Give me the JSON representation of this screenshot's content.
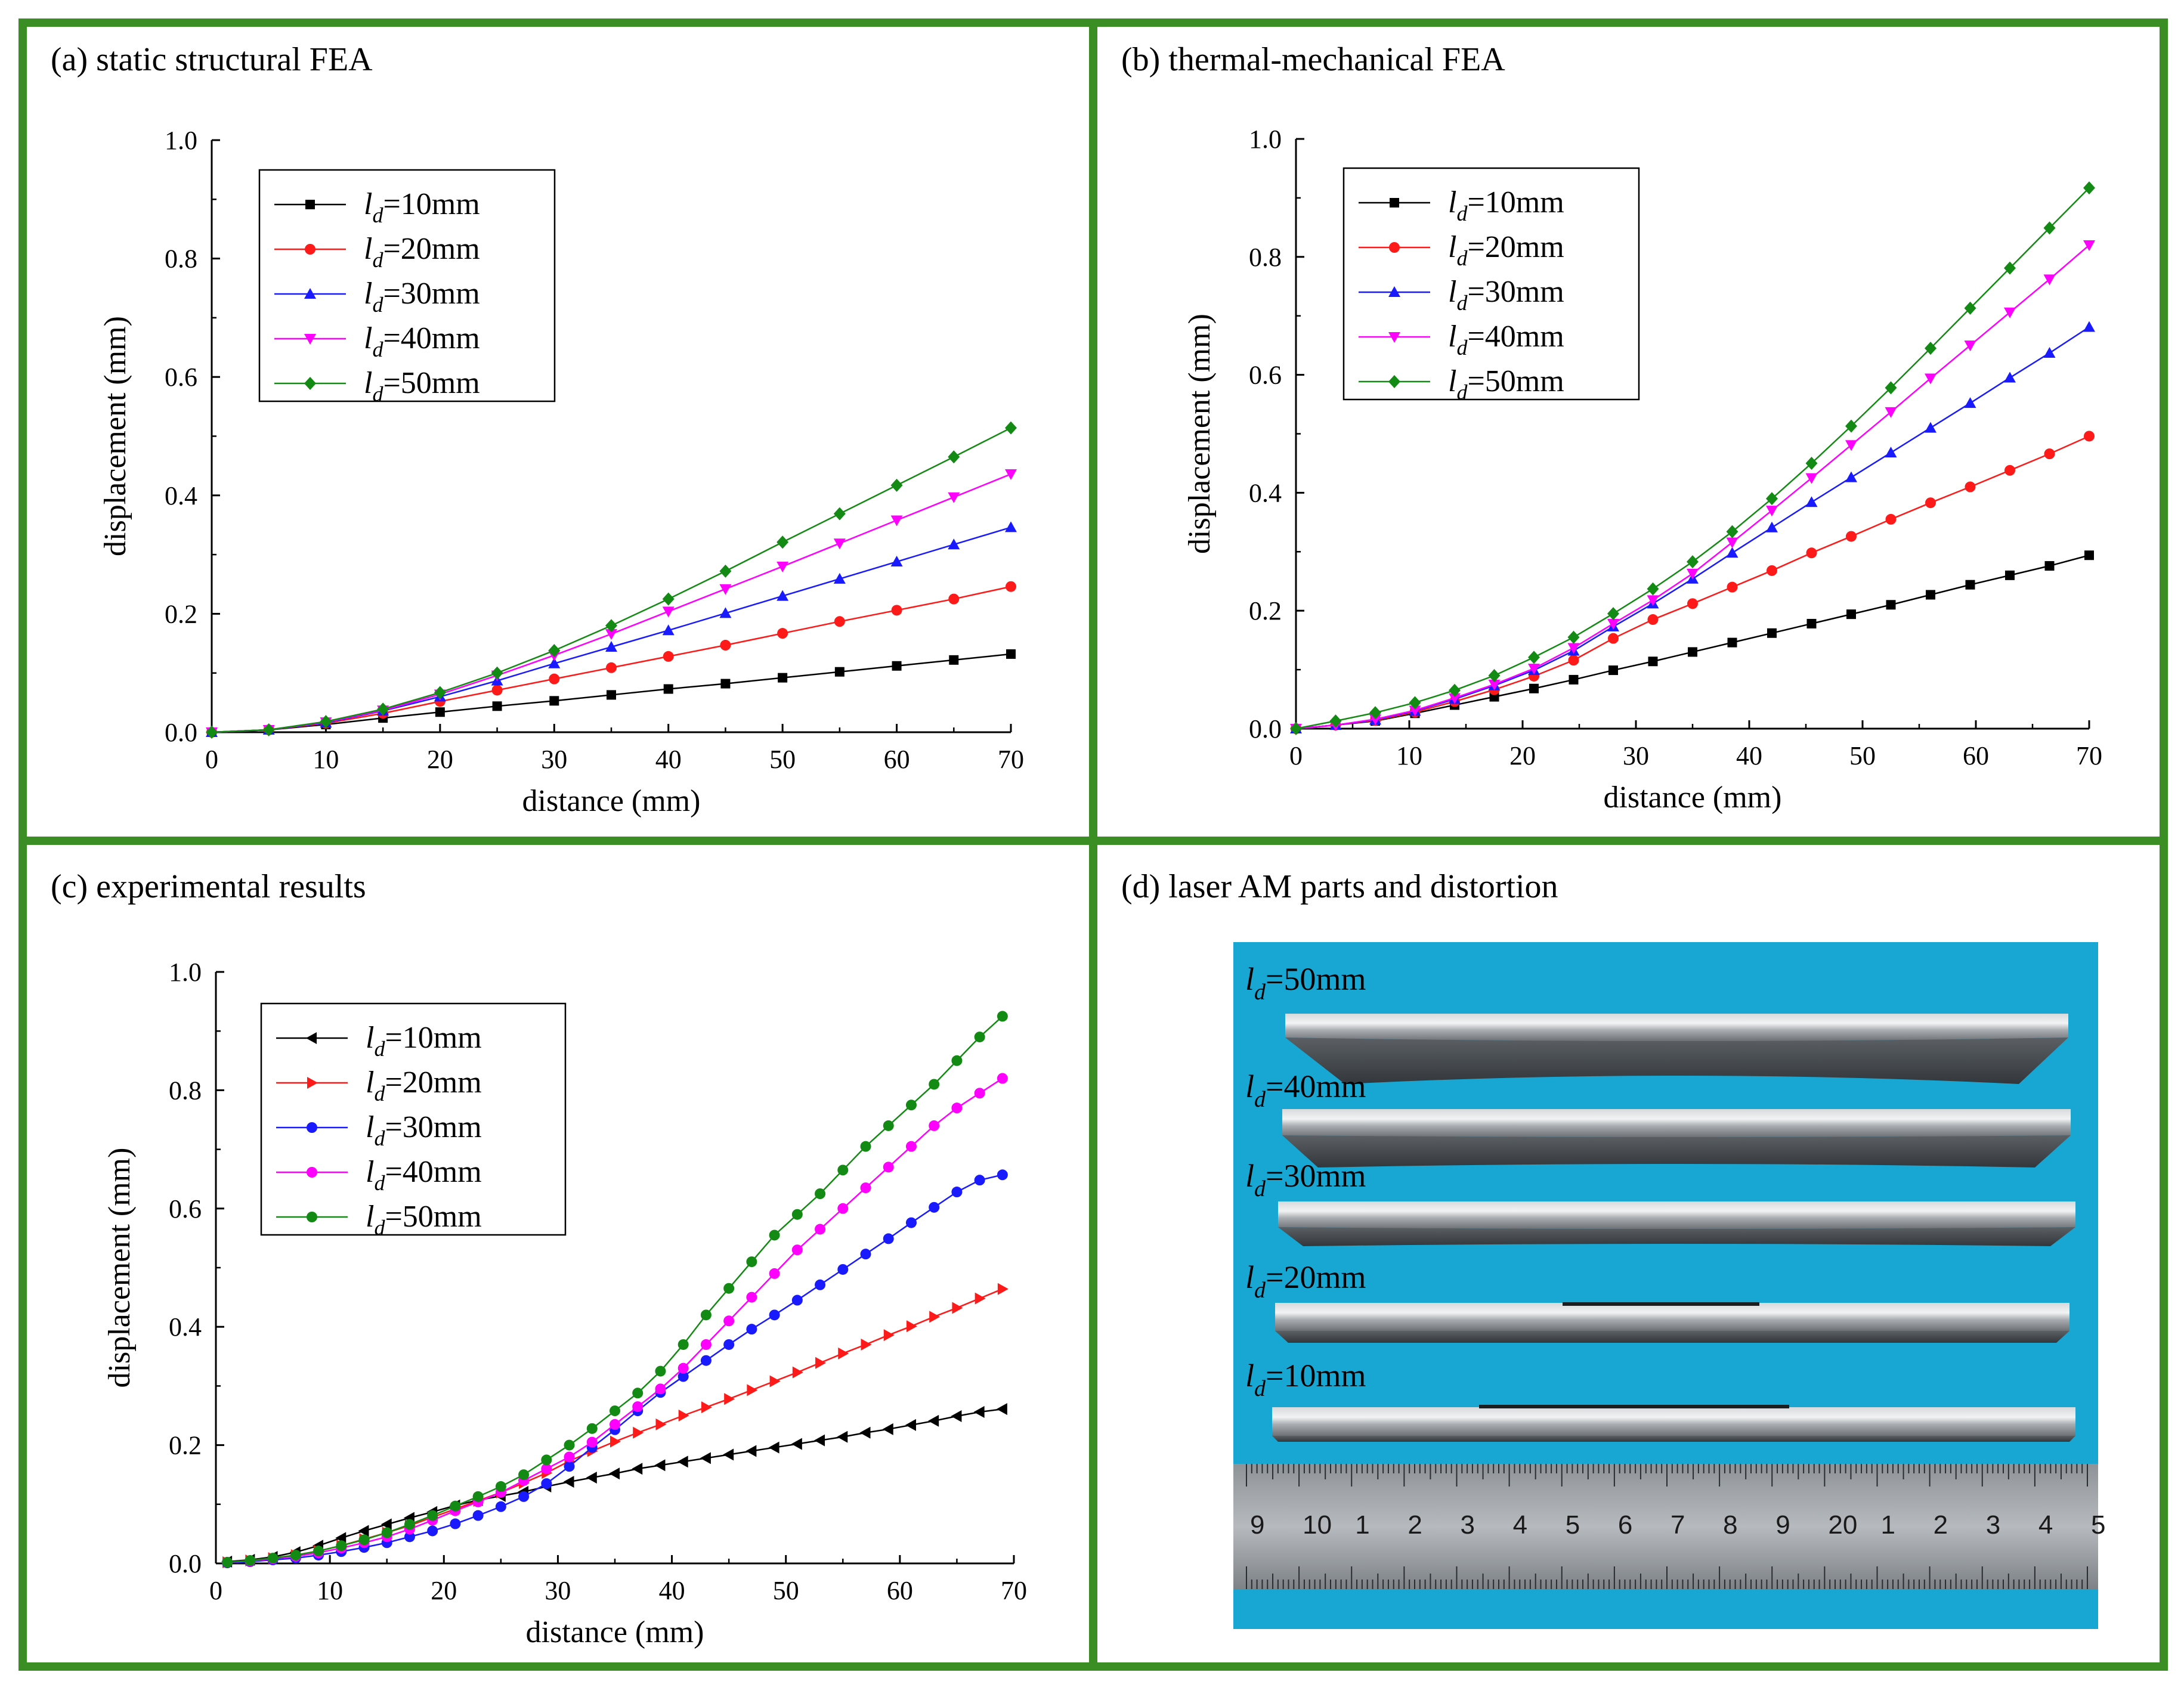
{
  "figure_border_color": "#3a8e24",
  "series_colors": [
    "#000000",
    "#ff1a1a",
    "#1a1aff",
    "#ff00ff",
    "#138a13"
  ],
  "chart_data": [
    {
      "id": "a",
      "type": "line",
      "title": "(a) static structural FEA",
      "xlabel": "distance (mm)",
      "ylabel": "displacement (mm)",
      "xlim": [
        0,
        70
      ],
      "ylim": [
        0,
        1.0
      ],
      "xticks": [
        "0",
        "10",
        "20",
        "30",
        "40",
        "50",
        "60",
        "70"
      ],
      "yticks": [
        "0.0",
        "0.2",
        "0.4",
        "0.6",
        "0.8",
        "1.0"
      ],
      "legend_position": "top-left",
      "marker": [
        "square",
        "circle",
        "triangle-up",
        "triangle-down",
        "diamond"
      ],
      "x": [
        0,
        5,
        10,
        15,
        20,
        25,
        30,
        35,
        40,
        45,
        50,
        55,
        60,
        65,
        70
      ],
      "series": [
        {
          "name": "l_d=10mm",
          "legend_sub": "d",
          "legend_rest": "=10mm",
          "values": [
            0,
            0.004,
            0.013,
            0.024,
            0.034,
            0.044,
            0.053,
            0.063,
            0.073,
            0.082,
            0.092,
            0.102,
            0.112,
            0.122,
            0.132
          ]
        },
        {
          "name": "l_d=20mm",
          "legend_sub": "d",
          "legend_rest": "=20mm",
          "values": [
            0,
            0.004,
            0.015,
            0.032,
            0.052,
            0.071,
            0.09,
            0.109,
            0.128,
            0.147,
            0.167,
            0.187,
            0.206,
            0.225,
            0.246
          ]
        },
        {
          "name": "l_d=30mm",
          "legend_sub": "d",
          "legend_rest": "=30mm",
          "values": [
            0,
            0.004,
            0.016,
            0.036,
            0.06,
            0.087,
            0.116,
            0.144,
            0.172,
            0.201,
            0.23,
            0.259,
            0.288,
            0.317,
            0.346
          ]
        },
        {
          "name": "l_d=40mm",
          "legend_sub": "d",
          "legend_rest": "=40mm",
          "values": [
            0,
            0.004,
            0.017,
            0.037,
            0.064,
            0.096,
            0.13,
            0.166,
            0.204,
            0.242,
            0.28,
            0.319,
            0.358,
            0.397,
            0.436
          ]
        },
        {
          "name": "l_d=50mm",
          "legend_sub": "d",
          "legend_rest": "=50mm",
          "values": [
            0,
            0.004,
            0.018,
            0.039,
            0.067,
            0.1,
            0.138,
            0.18,
            0.225,
            0.272,
            0.321,
            0.369,
            0.417,
            0.465,
            0.514
          ]
        }
      ]
    },
    {
      "id": "b",
      "type": "line",
      "title": "(b) thermal-mechanical FEA",
      "xlabel": "distance (mm)",
      "ylabel": "displacement (mm)",
      "xlim": [
        0,
        70
      ],
      "ylim": [
        0,
        1.0
      ],
      "xticks": [
        "0",
        "10",
        "20",
        "30",
        "40",
        "50",
        "60",
        "70"
      ],
      "yticks": [
        "0.0",
        "0.2",
        "0.4",
        "0.6",
        "0.8",
        "1.0"
      ],
      "legend_position": "top-left",
      "marker": [
        "square",
        "circle",
        "triangle-up",
        "triangle-down",
        "diamond"
      ],
      "x": [
        0,
        3.5,
        7,
        10.5,
        14,
        17.5,
        21,
        24.5,
        28,
        31.5,
        35,
        38.5,
        42,
        45.5,
        49,
        52.5,
        56,
        59.5,
        63,
        66.5,
        70
      ],
      "series": [
        {
          "name": "l_d=10mm",
          "legend_sub": "d",
          "legend_rest": "=10mm",
          "values": [
            0,
            0.006,
            0.013,
            0.026,
            0.04,
            0.054,
            0.068,
            0.083,
            0.099,
            0.114,
            0.13,
            0.146,
            0.162,
            0.178,
            0.194,
            0.21,
            0.227,
            0.244,
            0.26,
            0.276,
            0.294
          ]
        },
        {
          "name": "l_d=20mm",
          "legend_sub": "d",
          "legend_rest": "=20mm",
          "values": [
            0,
            0.006,
            0.014,
            0.028,
            0.046,
            0.066,
            0.089,
            0.116,
            0.153,
            0.185,
            0.212,
            0.24,
            0.268,
            0.298,
            0.326,
            0.355,
            0.383,
            0.41,
            0.438,
            0.466,
            0.496
          ]
        },
        {
          "name": "l_d=30mm",
          "legend_sub": "d",
          "legend_rest": "=30mm",
          "values": [
            0,
            0.006,
            0.015,
            0.03,
            0.05,
            0.073,
            0.099,
            0.132,
            0.173,
            0.212,
            0.254,
            0.298,
            0.341,
            0.384,
            0.426,
            0.468,
            0.51,
            0.552,
            0.595,
            0.637,
            0.681
          ]
        },
        {
          "name": "l_d=40mm",
          "legend_sub": "d",
          "legend_rest": "=40mm",
          "values": [
            0,
            0.006,
            0.016,
            0.031,
            0.052,
            0.075,
            0.102,
            0.137,
            0.178,
            0.218,
            0.263,
            0.316,
            0.37,
            0.425,
            0.481,
            0.537,
            0.594,
            0.65,
            0.706,
            0.762,
            0.82
          ]
        },
        {
          "name": "l_d=50mm",
          "legend_sub": "d",
          "legend_rest": "=50mm",
          "values": [
            0,
            0.013,
            0.027,
            0.044,
            0.065,
            0.09,
            0.121,
            0.155,
            0.195,
            0.237,
            0.283,
            0.334,
            0.39,
            0.45,
            0.513,
            0.578,
            0.645,
            0.713,
            0.781,
            0.849,
            0.917
          ]
        }
      ]
    },
    {
      "id": "c",
      "type": "line",
      "title": "(c) experimental results",
      "xlabel": "distance (mm)",
      "ylabel": "displacement (mm)",
      "xlim": [
        0,
        70
      ],
      "ylim": [
        0,
        1.0
      ],
      "xticks": [
        "0",
        "10",
        "20",
        "30",
        "40",
        "50",
        "60",
        "70"
      ],
      "yticks": [
        "0.0",
        "0.2",
        "0.4",
        "0.6",
        "0.8",
        "1.0"
      ],
      "legend_position": "top-left",
      "marker": [
        "triangle-left",
        "triangle-right",
        "circle",
        "circle",
        "circle"
      ],
      "x": [
        1,
        3,
        5,
        7,
        9,
        11,
        13,
        15,
        17,
        19,
        21,
        23,
        25,
        27,
        29,
        31,
        33,
        35,
        37,
        39,
        41,
        43,
        45,
        47,
        49,
        51,
        53,
        55,
        57,
        59,
        61,
        63,
        65,
        67,
        69
      ],
      "series": [
        {
          "name": "l_d=10mm",
          "legend_sub": "d",
          "legend_rest": "=10mm",
          "values": [
            0.003,
            0.006,
            0.011,
            0.019,
            0.03,
            0.043,
            0.055,
            0.066,
            0.077,
            0.087,
            0.098,
            0.107,
            0.114,
            0.121,
            0.13,
            0.138,
            0.145,
            0.152,
            0.16,
            0.166,
            0.172,
            0.178,
            0.184,
            0.19,
            0.196,
            0.202,
            0.208,
            0.214,
            0.221,
            0.227,
            0.234,
            0.241,
            0.249,
            0.256,
            0.261
          ]
        },
        {
          "name": "l_d=20mm",
          "legend_sub": "d",
          "legend_rest": "=20mm",
          "values": [
            0.002,
            0.005,
            0.009,
            0.014,
            0.021,
            0.03,
            0.041,
            0.052,
            0.064,
            0.078,
            0.092,
            0.106,
            0.12,
            0.136,
            0.153,
            0.173,
            0.19,
            0.206,
            0.221,
            0.235,
            0.25,
            0.264,
            0.278,
            0.293,
            0.308,
            0.323,
            0.339,
            0.355,
            0.37,
            0.386,
            0.401,
            0.417,
            0.432,
            0.448,
            0.464
          ]
        },
        {
          "name": "l_d=30mm",
          "legend_sub": "d",
          "legend_rest": "=30mm",
          "values": [
            0.001,
            0.003,
            0.006,
            0.009,
            0.014,
            0.02,
            0.027,
            0.035,
            0.045,
            0.055,
            0.067,
            0.081,
            0.096,
            0.113,
            0.135,
            0.164,
            0.196,
            0.226,
            0.258,
            0.289,
            0.316,
            0.343,
            0.37,
            0.396,
            0.42,
            0.445,
            0.471,
            0.497,
            0.523,
            0.549,
            0.576,
            0.602,
            0.628,
            0.648,
            0.657
          ]
        },
        {
          "name": "l_d=40mm",
          "legend_sub": "d",
          "legend_rest": "=40mm",
          "values": [
            0.002,
            0.004,
            0.008,
            0.012,
            0.018,
            0.026,
            0.035,
            0.045,
            0.058,
            0.073,
            0.089,
            0.104,
            0.12,
            0.14,
            0.16,
            0.18,
            0.205,
            0.235,
            0.265,
            0.295,
            0.33,
            0.37,
            0.41,
            0.45,
            0.49,
            0.53,
            0.565,
            0.6,
            0.635,
            0.67,
            0.705,
            0.74,
            0.77,
            0.795,
            0.82
          ]
        },
        {
          "name": "l_d=50mm",
          "legend_sub": "d",
          "legend_rest": "=50mm",
          "values": [
            0.002,
            0.005,
            0.009,
            0.014,
            0.021,
            0.03,
            0.04,
            0.052,
            0.066,
            0.081,
            0.097,
            0.113,
            0.13,
            0.15,
            0.175,
            0.2,
            0.228,
            0.258,
            0.288,
            0.325,
            0.37,
            0.42,
            0.465,
            0.51,
            0.555,
            0.59,
            0.625,
            0.665,
            0.705,
            0.74,
            0.775,
            0.81,
            0.85,
            0.89,
            0.925
          ]
        }
      ]
    }
  ],
  "photo": {
    "title": "(d) laser AM parts and distortion",
    "labels": [
      {
        "main": "l",
        "sub": "d",
        "rest": "=50mm"
      },
      {
        "main": "l",
        "sub": "d",
        "rest": "=40mm"
      },
      {
        "main": "l",
        "sub": "d",
        "rest": "=30mm"
      },
      {
        "main": "l",
        "sub": "d",
        "rest": "=20mm"
      },
      {
        "main": "l",
        "sub": "d",
        "rest": "=10mm"
      }
    ],
    "ruler_numbers": [
      "9",
      "10",
      "1",
      "2",
      "3",
      "4",
      "5",
      "6",
      "7",
      "8",
      "9",
      "20",
      "1",
      "2",
      "3",
      "4",
      "5"
    ],
    "ruler_red_numbers": [
      "10",
      "20"
    ]
  }
}
